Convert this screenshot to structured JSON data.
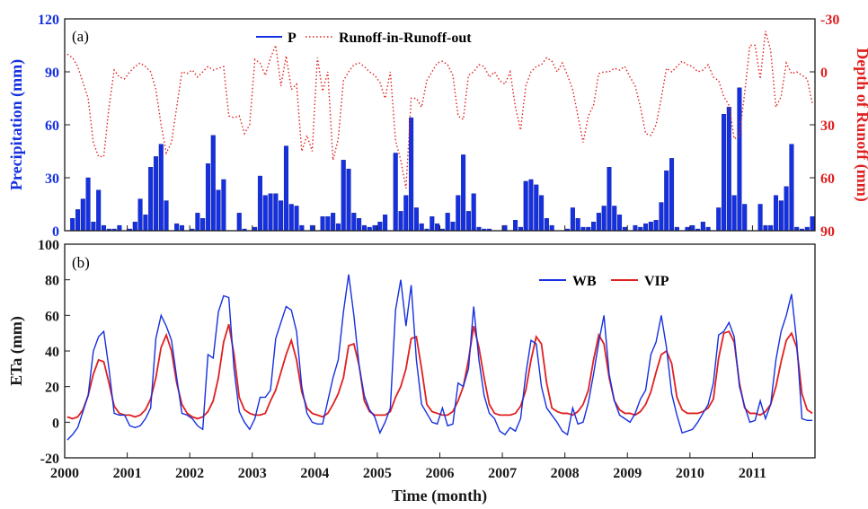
{
  "colors": {
    "precip_bar": "#1530e0",
    "runoff_line": "#e02020",
    "wb_line": "#1530e0",
    "vip_line": "#e02020",
    "axis": "#1a1a1a"
  },
  "chart_data": [
    {
      "panel_label": "(a)",
      "type": "bar",
      "xlim": [
        2000,
        2012
      ],
      "left_axis": {
        "label": "Precipitation (mm)",
        "ylim": [
          0,
          120
        ],
        "ticks": [
          "0",
          "30",
          "60",
          "90",
          "120"
        ]
      },
      "right_axis": {
        "label": "Depth of Runoff (mm)",
        "ylim_reversed": [
          -30,
          90
        ],
        "ticks": [
          "-30",
          "0",
          "30",
          "60",
          "90"
        ]
      },
      "legend": {
        "placement": "top-center",
        "entries": [
          "P",
          "Runoff-in-Runoff-out"
        ]
      },
      "series": [
        {
          "name": "P",
          "type": "bar",
          "x_start": 2000.0,
          "x_step_months": 1,
          "values": [
            0,
            7,
            12,
            18,
            30,
            5,
            23,
            3,
            1,
            1,
            3,
            0,
            1,
            5,
            18,
            9,
            36,
            42,
            49,
            17,
            0,
            4,
            3,
            0,
            1,
            10,
            7,
            38,
            54,
            23,
            29,
            0,
            0,
            10,
            1,
            0,
            2,
            31,
            20,
            21,
            21,
            17,
            48,
            15,
            14,
            3,
            0,
            3,
            0,
            8,
            8,
            10,
            4,
            40,
            35,
            10,
            7,
            3,
            2,
            3,
            5,
            9,
            0,
            44,
            11,
            20,
            64,
            13,
            4,
            1,
            8,
            4,
            1,
            10,
            5,
            20,
            43,
            11,
            21,
            2,
            1,
            1,
            0,
            0,
            3,
            0,
            6,
            2,
            28,
            29,
            26,
            20,
            7,
            3,
            0,
            0,
            1,
            13,
            7,
            2,
            2,
            5,
            10,
            14,
            36,
            14,
            9,
            2,
            0,
            3,
            2,
            4,
            5,
            6,
            16,
            34,
            41,
            2,
            0,
            2,
            3,
            1,
            5,
            2,
            0,
            13,
            66,
            70,
            20,
            81,
            15,
            0,
            0,
            15,
            3,
            3,
            20,
            17,
            25,
            49,
            2,
            1,
            2,
            8
          ]
        },
        {
          "name": "Runoff-in-Runoff-out",
          "type": "line",
          "style": "dotted",
          "axis": "right",
          "x_start": 2000.0,
          "x_step_months": 1,
          "values": [
            -10,
            -8,
            -3,
            6,
            15,
            40,
            48,
            48,
            20,
            -1,
            3,
            4,
            0,
            -3,
            -5,
            -3,
            0,
            10,
            30,
            46,
            40,
            20,
            0,
            1,
            -1,
            3,
            0,
            -3,
            -1,
            -2,
            -3,
            25,
            26,
            25,
            35,
            30,
            -7,
            -5,
            2,
            -8,
            -15,
            8,
            -9,
            10,
            7,
            45,
            36,
            45,
            -8,
            11,
            0,
            50,
            38,
            5,
            0,
            -4,
            -5,
            -3,
            0,
            2,
            6,
            15,
            0,
            39,
            50,
            66,
            15,
            15,
            20,
            5,
            0,
            -5,
            -6,
            -4,
            2,
            25,
            27,
            2,
            0,
            -4,
            -3,
            3,
            0,
            5,
            7,
            0,
            20,
            33,
            8,
            0,
            -3,
            -4,
            -8,
            -6,
            0,
            -5,
            2,
            10,
            25,
            40,
            25,
            19,
            1,
            0,
            0,
            -2,
            -1,
            -3,
            3,
            8,
            20,
            35,
            36,
            30,
            15,
            -2,
            0,
            -3,
            -6,
            -4,
            -3,
            0,
            -1,
            -4,
            3,
            5,
            14,
            19,
            38,
            36,
            12,
            -15,
            -15,
            4,
            -23,
            -12,
            20,
            14,
            -5,
            1,
            0,
            2,
            4,
            18
          ]
        }
      ]
    },
    {
      "panel_label": "(b)",
      "type": "line",
      "xlim": [
        2000,
        2012
      ],
      "ylabel": "ETa (mm)",
      "xlabel": "Time (month)",
      "ylim": [
        -20,
        100
      ],
      "yticks": [
        "-20",
        "0",
        "20",
        "40",
        "60",
        "80",
        "100"
      ],
      "xticks": [
        "2000",
        "2001",
        "2002",
        "2003",
        "2004",
        "2005",
        "2006",
        "2007",
        "2008",
        "2009",
        "2010",
        "2011"
      ],
      "legend": {
        "placement": "top-right",
        "entries": [
          "WB",
          "VIP"
        ]
      },
      "series": [
        {
          "name": "WB",
          "x_start": 2000.0,
          "x_step_months": 1,
          "values": [
            -10,
            -7,
            -3,
            6,
            15,
            40,
            48,
            51,
            30,
            5,
            4,
            4,
            -2,
            -3,
            -2,
            2,
            8,
            47,
            60,
            54,
            46,
            25,
            5,
            4,
            2,
            -2,
            -4,
            38,
            36,
            62,
            71,
            70,
            30,
            6,
            0,
            -4,
            2,
            14,
            14,
            18,
            47,
            56,
            65,
            63,
            51,
            20,
            5,
            0,
            -1,
            -1,
            12,
            25,
            35,
            62,
            83,
            60,
            32,
            15,
            7,
            3,
            -6,
            0,
            8,
            63,
            80,
            54,
            77,
            35,
            10,
            5,
            0,
            -1,
            8,
            -2,
            -1,
            22,
            20,
            30,
            65,
            35,
            15,
            5,
            2,
            -5,
            -7,
            -3,
            -5,
            2,
            27,
            46,
            44,
            20,
            8,
            4,
            0,
            -5,
            -7,
            8,
            -1,
            0,
            11,
            27,
            45,
            60,
            27,
            12,
            4,
            2,
            0,
            5,
            13,
            18,
            38,
            45,
            60,
            42,
            16,
            4,
            -6,
            -5,
            -4,
            0,
            5,
            10,
            22,
            49,
            51,
            56,
            48,
            20,
            9,
            0,
            1,
            12,
            2,
            10,
            35,
            51,
            60,
            72,
            45,
            2,
            1,
            1
          ]
        },
        {
          "name": "VIP",
          "x_start": 2000.0,
          "x_step_months": 1,
          "values": [
            3,
            2,
            3,
            7,
            15,
            27,
            35,
            34,
            22,
            9,
            5,
            4,
            4,
            3,
            4,
            7,
            13,
            25,
            42,
            49,
            40,
            22,
            10,
            5,
            3,
            2,
            3,
            6,
            12,
            25,
            45,
            55,
            38,
            14,
            7,
            5,
            4,
            4,
            5,
            12,
            18,
            28,
            38,
            46,
            35,
            17,
            8,
            5,
            4,
            3,
            5,
            10,
            16,
            25,
            43,
            44,
            32,
            12,
            6,
            4,
            4,
            4,
            6,
            14,
            20,
            30,
            47,
            48,
            30,
            10,
            6,
            5,
            4,
            4,
            6,
            12,
            20,
            35,
            54,
            42,
            25,
            10,
            5,
            4,
            4,
            4,
            5,
            9,
            18,
            35,
            48,
            44,
            22,
            8,
            6,
            5,
            5,
            4,
            6,
            10,
            18,
            35,
            49,
            44,
            25,
            12,
            7,
            5,
            5,
            4,
            6,
            10,
            17,
            28,
            38,
            40,
            33,
            14,
            7,
            5,
            5,
            5,
            6,
            8,
            13,
            36,
            50,
            51,
            45,
            22,
            8,
            5,
            5,
            4,
            6,
            10,
            20,
            34,
            46,
            50,
            42,
            16,
            7,
            5
          ]
        }
      ]
    }
  ]
}
